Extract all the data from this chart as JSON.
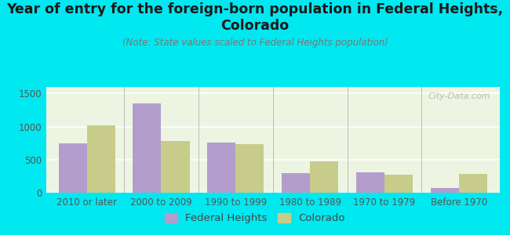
{
  "categories": [
    "2010 or later",
    "2000 to 2009",
    "1990 to 1999",
    "1980 to 1989",
    "1970 to 1979",
    "Before 1970"
  ],
  "federal_heights": [
    750,
    1350,
    760,
    300,
    310,
    75
  ],
  "colorado": [
    1020,
    780,
    730,
    470,
    270,
    280
  ],
  "federal_heights_color": "#b39dcc",
  "colorado_color": "#c8cc8a",
  "title_line1": "Year of entry for the foreign-born population in Federal Heights,",
  "title_line2": "Colorado",
  "subtitle": "(Note: State values scaled to Federal Heights population)",
  "ylim": [
    0,
    1600
  ],
  "yticks": [
    0,
    500,
    1000,
    1500
  ],
  "background_color": "#00e8f0",
  "plot_bg_color": "#edf5e2",
  "watermark": "City-Data.com",
  "legend_labels": [
    "Federal Heights",
    "Colorado"
  ],
  "bar_width": 0.38,
  "title_fontsize": 12.5,
  "subtitle_fontsize": 8.5,
  "tick_fontsize": 8.5,
  "legend_fontsize": 9.5
}
